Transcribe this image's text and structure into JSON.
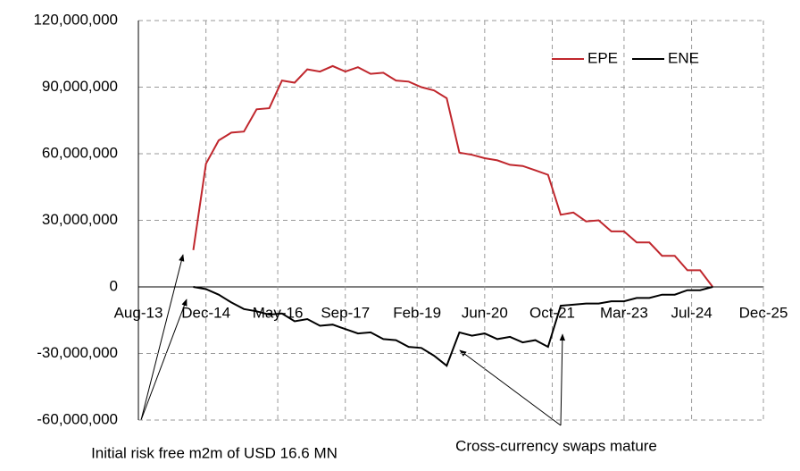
{
  "chart_data": {
    "type": "line",
    "x": [
      "2014-09",
      "2014-12",
      "2015-03",
      "2015-06",
      "2015-09",
      "2015-12",
      "2016-03",
      "2016-06",
      "2016-09",
      "2016-12",
      "2017-03",
      "2017-06",
      "2017-09",
      "2017-12",
      "2018-03",
      "2018-06",
      "2018-09",
      "2018-12",
      "2019-03",
      "2019-06",
      "2019-09",
      "2019-12",
      "2020-03",
      "2020-06",
      "2020-09",
      "2020-12",
      "2021-03",
      "2021-06",
      "2021-09",
      "2021-12",
      "2022-03",
      "2022-06",
      "2022-09",
      "2022-12",
      "2023-03",
      "2023-06",
      "2023-09",
      "2023-12",
      "2024-03",
      "2024-06",
      "2024-09",
      "2024-12"
    ],
    "series": [
      {
        "name": "EPE",
        "color": "#c0272d",
        "values": [
          16600000,
          55500000,
          66000000,
          69500000,
          70000000,
          80000000,
          80500000,
          93000000,
          92000000,
          98000000,
          97000000,
          99500000,
          97000000,
          99000000,
          96000000,
          96500000,
          93000000,
          92500000,
          90000000,
          88500000,
          85000000,
          60500000,
          59500000,
          58000000,
          57000000,
          55000000,
          54500000,
          52500000,
          50500000,
          32500000,
          33500000,
          29500000,
          30000000,
          25000000,
          25000000,
          20000000,
          20000000,
          14000000,
          14000000,
          7500000,
          7500000,
          0
        ]
      },
      {
        "name": "ENE",
        "color": "#000000",
        "values": [
          0,
          -1000000,
          -3500000,
          -7000000,
          -10000000,
          -11000000,
          -12500000,
          -12000000,
          -15500000,
          -14500000,
          -17500000,
          -17000000,
          -19000000,
          -21000000,
          -20500000,
          -23500000,
          -24000000,
          -27000000,
          -27500000,
          -31000000,
          -35500000,
          -20500000,
          -22000000,
          -21000000,
          -23500000,
          -22500000,
          -25000000,
          -24000000,
          -27000000,
          -8500000,
          -8000000,
          -7500000,
          -7500000,
          -6500000,
          -6500000,
          -5000000,
          -5000000,
          -3500000,
          -3500000,
          -1500000,
          -1500000,
          0
        ]
      }
    ],
    "xlim": [
      "2013-08",
      "2025-12"
    ],
    "xticks": [
      {
        "value": "2013-08",
        "label": "Aug-13"
      },
      {
        "value": "2014-12",
        "label": "Dec-14"
      },
      {
        "value": "2016-05",
        "label": "May-16"
      },
      {
        "value": "2017-09",
        "label": "Sep-17"
      },
      {
        "value": "2019-02",
        "label": "Feb-19"
      },
      {
        "value": "2020-06",
        "label": "Jun-20"
      },
      {
        "value": "2021-10",
        "label": "Oct-21"
      },
      {
        "value": "2023-03",
        "label": "Mar-23"
      },
      {
        "value": "2024-07",
        "label": "Jul-24"
      },
      {
        "value": "2025-12",
        "label": "Dec-25"
      }
    ],
    "ylim": [
      -60000000,
      120000000
    ],
    "yticks": [
      {
        "value": -60000000,
        "label": "-60,000,000"
      },
      {
        "value": -30000000,
        "label": "-30,000,000"
      },
      0,
      {
        "value": 30000000,
        "label": "30,000,000"
      },
      {
        "value": 60000000,
        "label": "60,000,000"
      },
      {
        "value": 90000000,
        "label": "90,000,000"
      },
      {
        "value": 120000000,
        "label": "120,000,000"
      }
    ],
    "grid": true,
    "legend": "top-right",
    "annotations": [
      "Initial risk free m2m of USD 16.6 MN",
      "Cross-currency swaps mature"
    ]
  }
}
